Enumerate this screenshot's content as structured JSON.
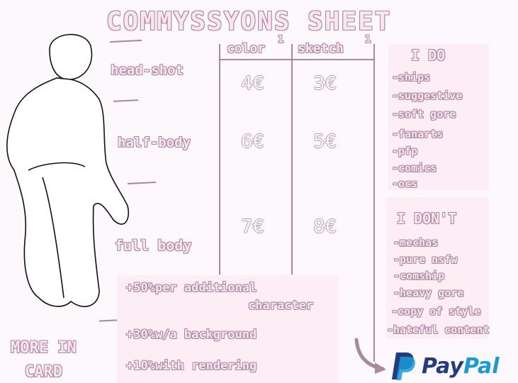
{
  "title": "COMMYSSYONS SHEET",
  "columns": [
    {
      "label": "color",
      "note": "1"
    },
    {
      "label": "sketch",
      "note": "1"
    }
  ],
  "rows": [
    {
      "label": "head-shot",
      "color": "4€",
      "sketch": "3€"
    },
    {
      "label": "half-body",
      "color": "6€",
      "sketch": "5€"
    },
    {
      "label": "full body",
      "color": "7€",
      "sketch": "8€"
    }
  ],
  "i_do": {
    "title": "I DO",
    "items": [
      "-ships",
      "-suggestive",
      "-soft gore",
      "-fanarts",
      "-pfp",
      "-comics",
      "-ocs"
    ]
  },
  "i_dont": {
    "title": "I DON'T",
    "items": [
      "-mechas",
      "-pure nsfw",
      "-comship",
      "-heavy gore",
      "-copy of style",
      "-hateful content"
    ]
  },
  "extras": [
    "+50%per additional",
    "character",
    "+30%w/a background",
    "+10%with rendering"
  ],
  "more": [
    "MORE IN",
    "CARD"
  ],
  "paypal": {
    "label_pay": "Pay",
    "label_pal": "Pal",
    "colors": {
      "dark": "#253b80",
      "light": "#179bd7"
    }
  },
  "colors": {
    "fill": "#fce4f1",
    "outline": "#a88aa0",
    "box": "#fdeef5"
  }
}
